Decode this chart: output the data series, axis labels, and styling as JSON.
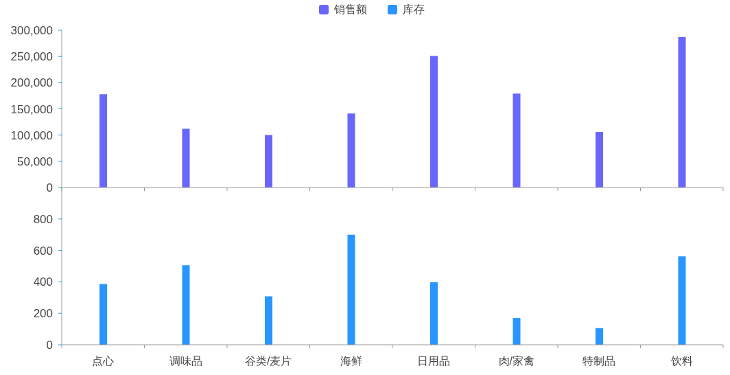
{
  "chart_data": [
    {
      "type": "bar",
      "categories": [
        null,
        null,
        null,
        null,
        null,
        null,
        null,
        null
      ],
      "series": [
        {
          "name": "销售额",
          "color": "#6966fb",
          "values": [
            178000,
            112000,
            100000,
            141000,
            251000,
            179000,
            106000,
            287000
          ]
        }
      ],
      "ylim": [
        0,
        300000
      ],
      "yticks": [
        0,
        {
          "value": 50000,
          "label": "50,000"
        },
        {
          "value": 100000,
          "label": "100,000"
        },
        {
          "value": 150000,
          "label": "150,000"
        },
        {
          "value": 200000,
          "label": "200,000"
        },
        {
          "value": 250000,
          "label": "250,000"
        },
        {
          "value": 300000,
          "label": "300,000"
        }
      ],
      "legend": "top"
    },
    {
      "type": "bar",
      "categories": [
        "点心",
        "调味品",
        "谷类/麦片",
        "海鲜",
        "日用品",
        "肉/家禽",
        "特制品",
        "饮料"
      ],
      "series": [
        {
          "name": "库存",
          "color": "#2896fe",
          "values": [
            386,
            506,
            308,
            700,
            397,
            170,
            106,
            562
          ]
        }
      ],
      "ylim": [
        0,
        1000
      ],
      "yticks": [
        0,
        200,
        400,
        600,
        800
      ],
      "legend": "top"
    }
  ]
}
